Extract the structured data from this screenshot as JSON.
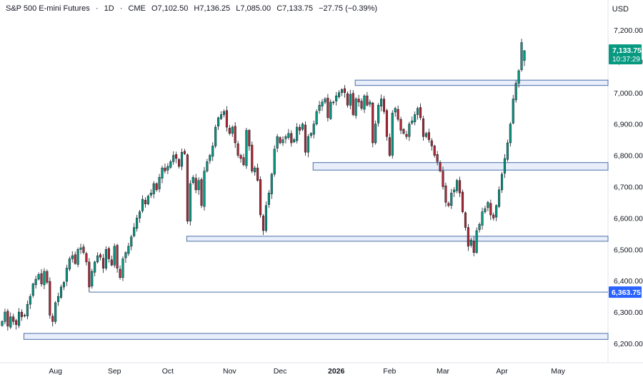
{
  "header": {
    "symbol": "S&P 500 E-mini Futures",
    "interval": "1D",
    "exchange": "CME",
    "open": "O7,102.50",
    "high": "H7,136.25",
    "low": "L7,085.00",
    "close": "C7,133.75",
    "change": "−27.75 (−0.39%)"
  },
  "currency": "USD",
  "price_tag": {
    "price": "7,133.75",
    "countdown": "10:37:29",
    "color": "#089981"
  },
  "level_tag": {
    "price": "6,363.75",
    "color": "#2962ff"
  },
  "colors": {
    "up": "#089981",
    "down": "#b22833",
    "zone_fill": "#e8eefb",
    "zone_border": "#4a6fa5"
  },
  "chart_data": {
    "type": "candlestick",
    "ylim": [
      6180,
      7235
    ],
    "y_ticks": [
      {
        "v": 7200,
        "label": "7,200.00"
      },
      {
        "v": 7100,
        "label": "7,100.00"
      },
      {
        "v": 7000,
        "label": "7,000.00"
      },
      {
        "v": 6900,
        "label": "6,900.00"
      },
      {
        "v": 6800,
        "label": "6,800.00"
      },
      {
        "v": 6700,
        "label": "6,700.00"
      },
      {
        "v": 6600,
        "label": "6,600.00"
      },
      {
        "v": 6500,
        "label": "6,500.00"
      },
      {
        "v": 6400,
        "label": "6,400.00"
      },
      {
        "v": 6300,
        "label": "6,300.00"
      },
      {
        "v": 6200,
        "label": "6,200.00"
      }
    ],
    "x_ticks": [
      {
        "i": 19,
        "label": "Aug"
      },
      {
        "i": 40,
        "label": "Sep"
      },
      {
        "i": 59,
        "label": "Oct"
      },
      {
        "i": 81,
        "label": "Nov"
      },
      {
        "i": 99,
        "label": "Dec"
      },
      {
        "i": 119,
        "label": "2026",
        "bold": true
      },
      {
        "i": 138,
        "label": "Feb"
      },
      {
        "i": 157,
        "label": "Mar"
      },
      {
        "i": 178,
        "label": "Apr"
      },
      {
        "i": 198,
        "label": "May"
      }
    ],
    "zones": [
      {
        "start": 126,
        "low": 7023,
        "high": 7040
      },
      {
        "start": 111,
        "low": 6753,
        "high": 6777
      },
      {
        "start": 66,
        "low": 6526,
        "high": 6542
      },
      {
        "start": 8,
        "low": 6213,
        "high": 6232
      }
    ],
    "lines": [
      {
        "start": 31,
        "price": 6363.75
      }
    ],
    "closes": [
      6270,
      6300,
      6255,
      6285,
      6270,
      6260,
      6300,
      6285,
      6290,
      6325,
      6350,
      6390,
      6405,
      6420,
      6390,
      6430,
      6395,
      6290,
      6270,
      6330,
      6350,
      6380,
      6395,
      6440,
      6470,
      6480,
      6455,
      6500,
      6505,
      6490,
      6460,
      6380,
      6430,
      6460,
      6480,
      6475,
      6440,
      6500,
      6470,
      6450,
      6510,
      6440,
      6410,
      6470,
      6490,
      6510,
      6540,
      6570,
      6600,
      6620,
      6660,
      6645,
      6670,
      6680,
      6710,
      6690,
      6730,
      6760,
      6750,
      6765,
      6780,
      6800,
      6790,
      6765,
      6810,
      6805,
      6590,
      6710,
      6730,
      6690,
      6720,
      6640,
      6750,
      6780,
      6800,
      6830,
      6890,
      6920,
      6930,
      6940,
      6890,
      6870,
      6890,
      6840,
      6800,
      6790,
      6770,
      6880,
      6830,
      6750,
      6760,
      6720,
      6610,
      6560,
      6640,
      6680,
      6740,
      6820,
      6860,
      6840,
      6850,
      6860,
      6870,
      6840,
      6850,
      6890,
      6880,
      6900,
      6810,
      6860,
      6870,
      6900,
      6940,
      6960,
      6970,
      6980,
      6920,
      6970,
      6970,
      6990,
      7000,
      7010,
      7000,
      6960,
      6995,
      6930,
      6980,
      6970,
      6950,
      6990,
      6960,
      6970,
      6840,
      6900,
      6960,
      6980,
      6940,
      6860,
      6800,
      6935,
      6950,
      6915,
      6880,
      6870,
      6860,
      6900,
      6910,
      6930,
      6950,
      6920,
      6860,
      6870,
      6850,
      6830,
      6800,
      6780,
      6750,
      6700,
      6650,
      6640,
      6680,
      6690,
      6720,
      6680,
      6620,
      6570,
      6510,
      6530,
      6490,
      6560,
      6580,
      6620,
      6630,
      6650,
      6610,
      6600,
      6640,
      6690,
      6740,
      6790,
      6840,
      6900,
      6980,
      7030,
      7070,
      7160,
      7133.75
    ],
    "last": {
      "open": 7102.5,
      "high": 7136.25,
      "low": 7085.0,
      "close": 7133.75
    }
  }
}
